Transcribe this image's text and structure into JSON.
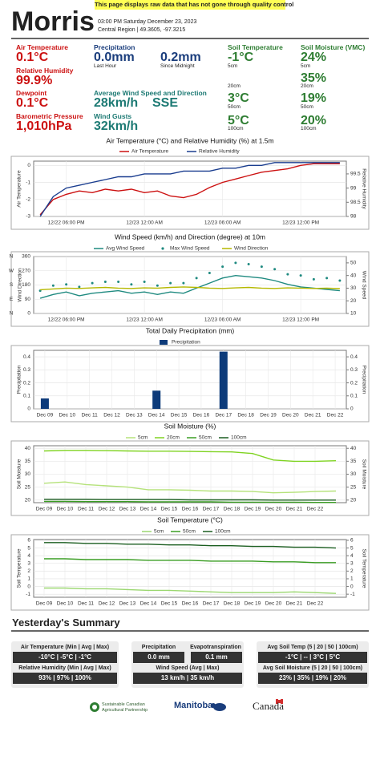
{
  "header": {
    "station": "Morris",
    "notice": "This page displays raw data that has not gone through quality control",
    "datetime": "03:00 PM Saturday December 23, 2023",
    "location": "Central Region | 49.3605, -97.3215"
  },
  "current": {
    "air_temperature": {
      "label": "Air Temperature",
      "value": "0.1°C"
    },
    "relative_humidity": {
      "label": "Relative Humidity",
      "value": "99.9%"
    },
    "dewpoint": {
      "label": "Dewpoint",
      "value": "0.1°C"
    },
    "pressure": {
      "label": "Barometric Pressure",
      "value": "1,010hPa"
    },
    "precipitation": {
      "label": "Precipitation",
      "last_hour": "0.0mm",
      "last_hour_label": "Last Hour",
      "since_midnight": "0.2mm",
      "since_midnight_label": "Since Midnight"
    },
    "wind": {
      "label": "Average Wind Speed and Direction",
      "speed": "28km/h",
      "direction": "SSE"
    },
    "gusts": {
      "label": "Wind Gusts",
      "value": "32km/h"
    },
    "soil_temperature": {
      "label": "Soil Temperature",
      "readings": [
        {
          "value": "-1°C",
          "depth": "5cm"
        },
        {
          "depth": "20cm"
        },
        {
          "value": "3°C",
          "depth": "50cm"
        },
        {
          "value": "5°C",
          "depth": "100cm"
        }
      ]
    },
    "soil_moisture": {
      "label": "Soil Moisture (VMC)",
      "readings": [
        {
          "value": "24%",
          "depth": "5cm"
        },
        {
          "value": "35%",
          "depth": "20cm"
        },
        {
          "value": "19%",
          "depth": "50cm"
        },
        {
          "value": "20%",
          "depth": "100cm"
        }
      ]
    }
  },
  "chart_data": [
    {
      "type": "line",
      "title": "Air Temperature (°C) and Relative Humidity (%) at 1.5m",
      "ylabel": "Air Temperature",
      "y2label": "Relative Humidity",
      "grid": true,
      "categories": [
        null,
        null,
        "12/22 06:00 PM",
        null,
        null,
        null,
        null,
        null,
        "12/23 12:00 AM",
        null,
        null,
        null,
        null,
        null,
        "12/23 06:00 AM",
        null,
        null,
        null,
        null,
        null,
        "12/23 12:00 PM",
        null,
        null,
        null
      ],
      "series": [
        {
          "name": "Air Temperature",
          "color": "#cc1111",
          "mode": "lines",
          "values": [
            -2.9,
            -2.0,
            -1.7,
            -1.5,
            -1.6,
            -1.4,
            -1.5,
            -1.4,
            -1.6,
            -1.5,
            -1.8,
            -1.9,
            -1.7,
            -1.3,
            -1.0,
            -0.8,
            -0.6,
            -0.4,
            -0.3,
            -0.2,
            0.0,
            0.1,
            0.1,
            0.1
          ]
        },
        {
          "name": "Relative Humidity",
          "color": "#1a3d8f",
          "mode": "lines",
          "axis": "y2",
          "values": [
            98.0,
            98.7,
            99.0,
            99.1,
            99.2,
            99.3,
            99.4,
            99.4,
            99.5,
            99.5,
            99.5,
            99.6,
            99.6,
            99.6,
            99.7,
            99.7,
            99.8,
            99.8,
            99.9,
            99.9,
            99.9,
            99.9,
            99.9,
            99.9
          ]
        }
      ],
      "ylim": [
        -3,
        0.25
      ],
      "yticks": [
        -3,
        -2,
        -1,
        0
      ],
      "y2lim": [
        98,
        99.95
      ],
      "y2ticks": [
        98,
        98.5,
        99,
        99.5
      ]
    },
    {
      "type": "line",
      "title": "Wind Speed (km/h) and Direction (degree) at 10m",
      "ylabel": "Wind Direction",
      "y2label": "Wind Speed",
      "grid": true,
      "categories": [
        null,
        null,
        "12/22 06:00 PM",
        null,
        null,
        null,
        null,
        null,
        "12/23 12:00 AM",
        null,
        null,
        null,
        null,
        null,
        "12/23 06:00 AM",
        null,
        null,
        null,
        null,
        null,
        "12/23 12:00 PM",
        null,
        null,
        null
      ],
      "series": [
        {
          "name": "Avg Wind Speed",
          "color": "#1f8a80",
          "mode": "lines",
          "axis": "y2",
          "values": [
            22,
            25,
            27,
            24,
            26,
            27,
            28,
            26,
            27,
            25,
            27,
            26,
            30,
            34,
            38,
            40,
            39,
            38,
            36,
            33,
            31,
            30,
            29,
            28
          ]
        },
        {
          "name": "Max Wind Speed",
          "color": "#1f8a80",
          "mode": "markers",
          "axis": "y2",
          "values": [
            28,
            32,
            33,
            31,
            34,
            35,
            35,
            33,
            35,
            32,
            34,
            34,
            38,
            42,
            47,
            50,
            49,
            47,
            45,
            41,
            40,
            37,
            38,
            36
          ]
        },
        {
          "name": "Wind Direction",
          "color": "#b5b800",
          "mode": "lines",
          "values": [
            150,
            155,
            160,
            158,
            162,
            165,
            160,
            158,
            162,
            160,
            165,
            168,
            165,
            160,
            158,
            162,
            165,
            160,
            158,
            162,
            160,
            158,
            160,
            157
          ]
        }
      ],
      "ylim": [
        0,
        360
      ],
      "yticks": [
        0,
        90,
        180,
        270,
        360
      ],
      "compass_ticks": [
        {
          "value": 360,
          "label": "N"
        },
        {
          "value": 270,
          "label": "W"
        },
        {
          "value": 180,
          "label": "S"
        },
        {
          "value": 90,
          "label": "E"
        },
        {
          "value": 0,
          "label": "N"
        }
      ],
      "y2lim": [
        10,
        55
      ],
      "y2ticks": [
        10,
        20,
        30,
        40,
        50
      ]
    },
    {
      "type": "bar",
      "title": "Total Daily Precipitation (mm)",
      "ylabel": "Precipitation",
      "y2label": "Precipitation",
      "grid": true,
      "categories": [
        "Dec 09",
        "Dec 10",
        "Dec 11",
        "Dec 12",
        "Dec 13",
        "Dec 14",
        "Dec 15",
        "Dec 16",
        "Dec 17",
        "Dec 18",
        "Dec 19",
        "Dec 20",
        "Dec 21",
        "Dec 22"
      ],
      "series": [
        {
          "name": "Precipitation",
          "color": "#0d3b7a",
          "values": [
            0.08,
            0,
            0,
            0,
            0,
            0.14,
            0,
            0,
            0.44,
            0,
            0,
            0,
            0,
            0
          ]
        }
      ],
      "ylim": [
        0,
        0.45
      ],
      "yticks": [
        0,
        0.1,
        0.2,
        0.3,
        0.4
      ],
      "y2lim": [
        0,
        0.45
      ],
      "y2ticks": [
        0,
        0.1,
        0.2,
        0.3,
        0.4
      ]
    },
    {
      "type": "line",
      "title": "Soil Moisture (%)",
      "ylabel": "Soil Moisture",
      "y2label": "Soil Moisture",
      "grid": true,
      "categories": [
        "Dec 09",
        "Dec 10",
        "Dec 11",
        "Dec 12",
        "Dec 13",
        "Dec 14",
        "Dec 15",
        "Dec 16",
        "Dec 17",
        "Dec 18",
        "Dec 19",
        "Dec 20",
        "Dec 21",
        "Dec 22",
        null
      ],
      "series": [
        {
          "name": "5cm",
          "color": "#b5e27a",
          "mode": "lines",
          "values": [
            26.5,
            27,
            26,
            25.5,
            25,
            24,
            24,
            23.8,
            23.5,
            23.5,
            23.3,
            22.8,
            23,
            23.3,
            23.5
          ]
        },
        {
          "name": "20cm",
          "color": "#7fd321",
          "mode": "lines",
          "values": [
            39,
            39.2,
            39.2,
            39.1,
            39,
            38.9,
            38.9,
            38.8,
            38.7,
            38.6,
            38,
            35.5,
            35,
            35,
            35.2
          ]
        },
        {
          "name": "50cm",
          "color": "#3a9d23",
          "mode": "lines",
          "values": [
            19.5,
            19.5,
            19.4,
            19.4,
            19.4,
            19.3,
            19.3,
            19.3,
            19.3,
            19.2,
            19.2,
            19.2,
            19.2,
            19.1,
            19.1
          ]
        },
        {
          "name": "100cm",
          "color": "#1b5e20",
          "mode": "lines",
          "values": [
            20.3,
            20.3,
            20.3,
            20.2,
            20.2,
            20.2,
            20.2,
            20.1,
            20.1,
            20.1,
            20.1,
            20.0,
            20.0,
            20.0,
            20.0
          ]
        }
      ],
      "ylim": [
        19,
        41
      ],
      "yticks": [
        20,
        25,
        30,
        35,
        40
      ],
      "y2lim": [
        19,
        41
      ],
      "y2ticks": [
        20,
        25,
        30,
        35,
        40
      ]
    },
    {
      "type": "line",
      "title": "Soil Temperature (°C)",
      "ylabel": "Soil Temperature",
      "y2label": "Soil Temperature",
      "grid": true,
      "categories": [
        "Dec 09",
        "Dec 10",
        "Dec 11",
        "Dec 12",
        "Dec 13",
        "Dec 14",
        "Dec 15",
        "Dec 16",
        "Dec 17",
        "Dec 18",
        "Dec 19",
        "Dec 20",
        "Dec 21",
        "Dec 22",
        null
      ],
      "series": [
        {
          "name": "5cm",
          "color": "#9bd770",
          "mode": "lines",
          "values": [
            -0.2,
            -0.2,
            -0.3,
            -0.3,
            -0.4,
            -0.5,
            -0.5,
            -0.6,
            -0.7,
            -0.8,
            -0.8,
            -0.8,
            -0.7,
            -0.8,
            -0.9
          ]
        },
        {
          "name": "50cm",
          "color": "#3a9d23",
          "mode": "lines",
          "values": [
            3.6,
            3.6,
            3.5,
            3.5,
            3.5,
            3.4,
            3.4,
            3.4,
            3.3,
            3.3,
            3.3,
            3.2,
            3.2,
            3.1,
            3.1
          ]
        },
        {
          "name": "100cm",
          "color": "#1b5e20",
          "mode": "lines",
          "values": [
            5.7,
            5.7,
            5.6,
            5.6,
            5.5,
            5.5,
            5.4,
            5.4,
            5.3,
            5.3,
            5.2,
            5.2,
            5.1,
            5.1,
            5.0
          ]
        }
      ],
      "ylim": [
        -1.4,
        6.1
      ],
      "yticks": [
        -1,
        0,
        1,
        2,
        3,
        4,
        5,
        6
      ],
      "y2lim": [
        -1.4,
        6.1
      ],
      "y2ticks": [
        -1,
        0,
        1,
        2,
        3,
        4,
        5,
        6
      ]
    }
  ],
  "summary": {
    "title": "Yesterday's Summary",
    "air_temperature": {
      "label": "Air Temperature (Min | Avg | Max)",
      "value": "-10°C | -5°C | -1°C"
    },
    "relative_humidity": {
      "label": "Relative Humidity (Min | Avg | Max)",
      "value": "93% | 97% | 100%"
    },
    "precipitation": {
      "label": "Precipitation",
      "value": "0.0 mm"
    },
    "evapotranspiration": {
      "label": "Evapotranspiration",
      "value": "0.1 mm"
    },
    "wind_speed": {
      "label": "Wind Speed (Avg | Max)",
      "value": "13 km/h | 35 km/h"
    },
    "soil_temperature": {
      "label": "Avg Soil Temp (5 | 20 | 50 | 100cm)",
      "value": "-1°C | -- | 3°C | 5°C"
    },
    "soil_moisture": {
      "label": "Avg Soil Moisture (5 | 20 | 50 | 100cm)",
      "value": "23% | 35% | 19% | 20%"
    }
  },
  "footer": {
    "partnership": "Sustainable Canadian Agricultural Partnership",
    "manitoba": "Manitoba",
    "canada": "Canada"
  }
}
